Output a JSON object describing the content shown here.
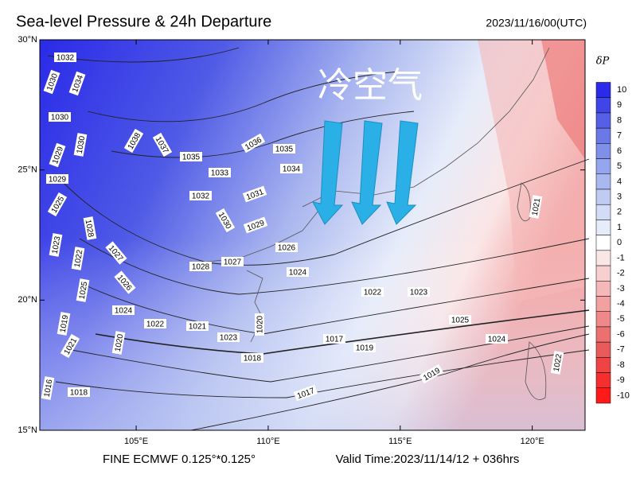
{
  "map": {
    "title": "Sea-level Pressure & 24h Departure",
    "timestamp": "2023/11/16/00(UTC)",
    "annotation": "冷空气",
    "footer_left": "FINE ECMWF 0.125°*0.125°",
    "footer_right": "Valid Time:2023/11/14/12 + 036hrs",
    "lat_range": [
      15,
      30
    ],
    "lon_range": [
      101.35,
      122
    ],
    "lat_ticks": [
      {
        "value": 30,
        "label": "30°N"
      },
      {
        "value": 25,
        "label": "25°N"
      },
      {
        "value": 20,
        "label": "20°N"
      },
      {
        "value": 15,
        "label": "15°N"
      }
    ],
    "lon_ticks": [
      {
        "value": 105,
        "label": "105°E"
      },
      {
        "value": 110,
        "label": "110°E"
      },
      {
        "value": 115,
        "label": "115°E"
      },
      {
        "value": 120,
        "label": "120°E"
      }
    ],
    "colorbar": {
      "label": "δP",
      "levels": [
        10,
        9,
        8,
        7,
        6,
        5,
        4,
        3,
        2,
        1,
        0,
        -1,
        -2,
        -3,
        -4,
        -5,
        -6,
        -7,
        -8,
        -9,
        -10
      ],
      "colors": [
        "#2a2ae8",
        "#3f45e8",
        "#5560e6",
        "#6a78e8",
        "#8090ea",
        "#95a5ee",
        "#aab8f0",
        "#bfcbf3",
        "#d3dcf6",
        "#e6ecfa",
        "#ffffff",
        "#fbe6e6",
        "#f8cfcf",
        "#f5b8b8",
        "#f2a0a0",
        "#ef8989",
        "#ec7070",
        "#e95a5a",
        "#f04444",
        "#f52e2e",
        "#ff1a1a"
      ]
    },
    "isobar_labels": [
      1032,
      1030,
      1034,
      1030,
      1030,
      1029,
      1038,
      1037,
      1035,
      1036,
      1035,
      1033,
      1034,
      1032,
      1031,
      1030,
      1029,
      1029,
      1025,
      1028,
      1027,
      1026,
      1028,
      1027,
      1026,
      1024,
      1023,
      1022,
      1025,
      1024,
      1022,
      1021,
      1023,
      1020,
      1019,
      1021,
      1020,
      1018,
      1017,
      1019,
      1018,
      1016,
      1017,
      1019,
      1024,
      1022,
      1021,
      1022,
      1023,
      1025
    ]
  }
}
